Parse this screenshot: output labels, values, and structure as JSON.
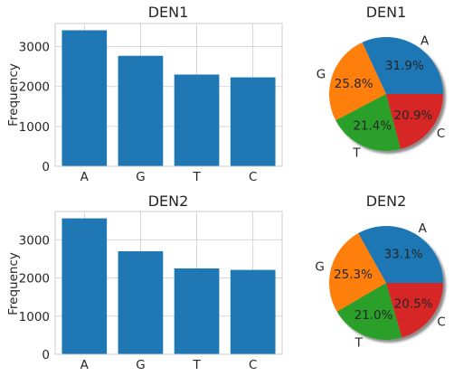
{
  "chart_data": [
    {
      "type": "bar",
      "title": "DEN1",
      "categories": [
        "A",
        "G",
        "T",
        "C"
      ],
      "values": [
        3410,
        2770,
        2300,
        2230
      ],
      "ylabel": "Frequency",
      "xlabel": "",
      "ylim": [
        0,
        3580
      ],
      "yticks": [
        0,
        1000,
        2000,
        3000
      ],
      "grid": true,
      "color": "#1f77b4"
    },
    {
      "type": "pie",
      "title": "DEN1",
      "labels": [
        "A",
        "G",
        "T",
        "C"
      ],
      "values": [
        31.9,
        25.8,
        21.4,
        20.9
      ],
      "pct_labels": [
        "31.9%",
        "25.8%",
        "21.4%",
        "20.9%"
      ],
      "colors": [
        "#1f77b4",
        "#ff7f0e",
        "#2ca02c",
        "#d62728"
      ],
      "shadow": true
    },
    {
      "type": "bar",
      "title": "DEN2",
      "categories": [
        "A",
        "G",
        "T",
        "C"
      ],
      "values": [
        3560,
        2700,
        2250,
        2210
      ],
      "ylabel": "Frequency",
      "xlabel": "",
      "ylim": [
        0,
        3740
      ],
      "yticks": [
        0,
        1000,
        2000,
        3000
      ],
      "grid": true,
      "color": "#1f77b4"
    },
    {
      "type": "pie",
      "title": "DEN2",
      "labels": [
        "A",
        "G",
        "T",
        "C"
      ],
      "values": [
        33.1,
        25.3,
        21.0,
        20.5
      ],
      "pct_labels": [
        "33.1%",
        "25.3%",
        "21.0%",
        "20.5%"
      ],
      "colors": [
        "#1f77b4",
        "#ff7f0e",
        "#2ca02c",
        "#d62728"
      ],
      "shadow": true
    }
  ]
}
